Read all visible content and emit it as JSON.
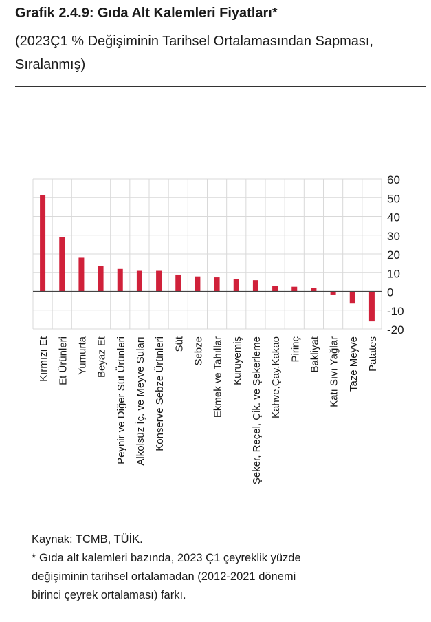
{
  "header": {
    "title": "Grafik 2.4.9: Gıda Alt Kalemleri Fiyatları*",
    "subtitle": "(2023Ç1 % Değişiminin Tarihsel Ortalamasından Sapması, Sıralanmış)"
  },
  "chart_data": {
    "type": "bar",
    "title": "",
    "xlabel": "",
    "ylabel": "",
    "categories": [
      "Kırmızı Et",
      "Et Ürünleri",
      "Yumurta",
      "Beyaz Et",
      "Peynir ve Diğer Süt Ürünleri",
      "Alkolsüz İç. ve Meyve Suları",
      "Konserve Sebze Ürünleri",
      "Süt",
      "Sebze",
      "Ekmek ve Tahıllar",
      "Kuruyemiş",
      "Şeker, Reçel, Çik. ve Şekerleme",
      "Kahve,Çay,Kakao",
      "Pirinç",
      "Bakliyat",
      "Katı Sıvı Yağlar",
      "Taze Meyve",
      "Patates"
    ],
    "values": [
      51.5,
      29,
      18,
      13.5,
      12,
      11,
      11,
      9,
      8,
      7.5,
      6.5,
      6,
      3,
      2.5,
      2,
      -2,
      -6.5,
      -16
    ],
    "ylim": [
      -20,
      60
    ],
    "yticks": [
      60,
      50,
      40,
      30,
      20,
      10,
      0,
      -10,
      -20
    ],
    "ytick_labels": [
      "60",
      "50",
      "40",
      "30",
      "20",
      "10",
      "0",
      "-10",
      "-20"
    ],
    "y_axis_position": "right",
    "grid": true,
    "legend": "none",
    "colors": {
      "bar": "#d0213a",
      "grid": "#d9d9d9",
      "zero_line": "#444444"
    }
  },
  "footer": {
    "source": "Kaynak: TCMB, TÜİK.",
    "note_line1": "* Gıda alt kalemleri bazında, 2023 Ç1 çeyreklik yüzde",
    "note_line2": "değişiminin tarihsel ortalamadan (2012-2021 dönemi",
    "note_line3": "birinci çeyrek ortalaması) farkı."
  }
}
